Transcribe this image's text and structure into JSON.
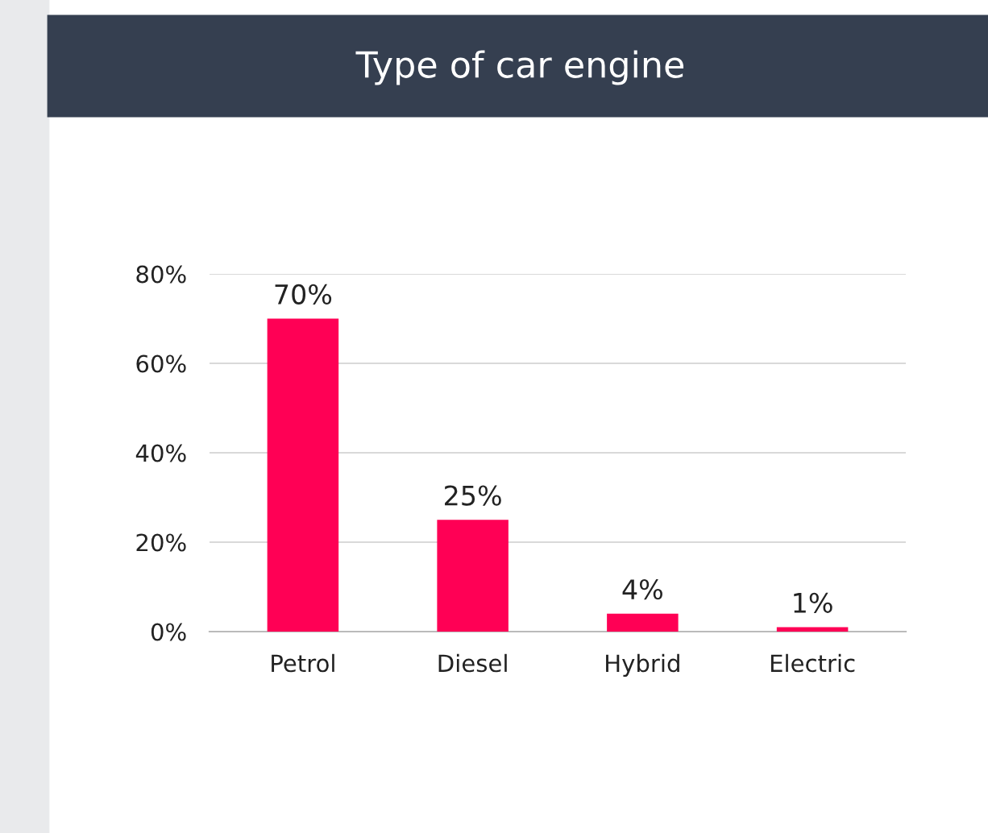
{
  "chart_data": {
    "type": "bar",
    "title": "Type of car engine",
    "categories": [
      "Petrol",
      "Diesel",
      "Hybrid",
      "Electric"
    ],
    "values": [
      70,
      25,
      4,
      1
    ],
    "color": "#ff0055",
    "ylim": [
      0,
      80
    ],
    "yticks": [
      {
        "value": 0,
        "label": "0%"
      },
      {
        "value": 20,
        "label": "20%"
      },
      {
        "value": 40,
        "label": "40%"
      },
      {
        "value": 60,
        "label": "60%"
      },
      {
        "value": 80,
        "label": "80%"
      }
    ],
    "value_labels": [
      "70%",
      "25%",
      "4%",
      "1%"
    ],
    "grid": "y",
    "legend": false
  }
}
